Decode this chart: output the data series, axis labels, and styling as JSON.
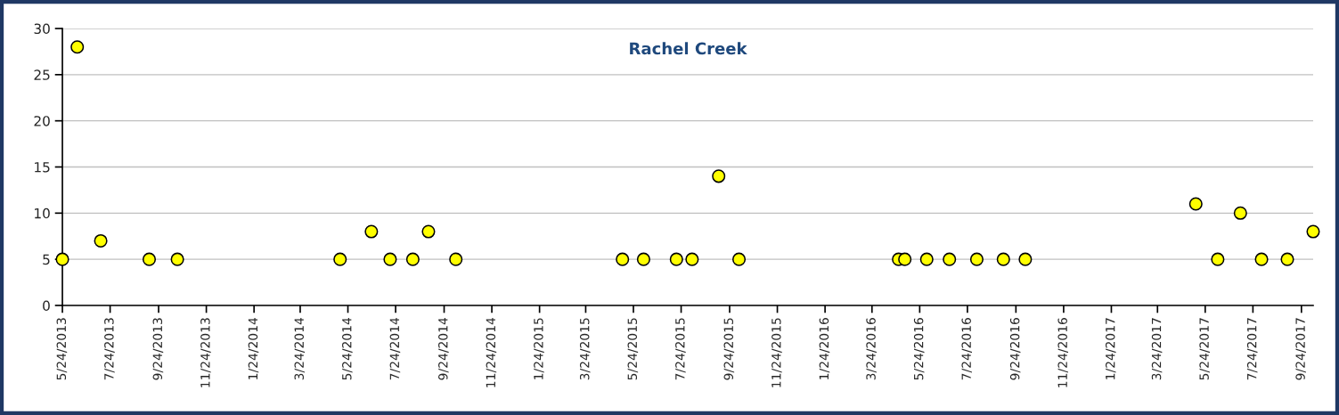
{
  "chart_data": {
    "type": "scatter",
    "title": "Rachel Creek",
    "x": [
      "2013-05-24",
      "2013-06-12",
      "2013-07-12",
      "2013-09-12",
      "2013-10-18",
      "2014-05-14",
      "2014-06-23",
      "2014-07-17",
      "2014-08-15",
      "2014-09-04",
      "2014-10-09",
      "2015-05-10",
      "2015-06-06",
      "2015-07-18",
      "2015-08-07",
      "2015-09-10",
      "2015-10-06",
      "2016-04-27",
      "2016-05-05",
      "2016-06-02",
      "2016-07-01",
      "2016-08-05",
      "2016-09-08",
      "2016-10-06",
      "2017-05-12",
      "2017-06-09",
      "2017-07-08",
      "2017-08-04",
      "2017-09-06",
      "2017-10-09"
    ],
    "series": [
      {
        "color": "#ffff00",
        "values": [
          5,
          28,
          7,
          5,
          5,
          5,
          8,
          5,
          5,
          8,
          5,
          5,
          5,
          5,
          5,
          14,
          5,
          5,
          5,
          5,
          5,
          5,
          5,
          5,
          11,
          5,
          10,
          5,
          5,
          8
        ]
      }
    ],
    "marker": "circle",
    "xlim": [
      "2013-05-24",
      "2017-10-09"
    ],
    "xticks": [
      {
        "value": "2013-05-24",
        "label": "5/24/2013"
      },
      {
        "value": "2013-07-24",
        "label": "7/24/2013"
      },
      {
        "value": "2013-09-24",
        "label": "9/24/2013"
      },
      {
        "value": "2013-11-24",
        "label": "11/24/2013"
      },
      {
        "value": "2014-01-24",
        "label": "1/24/2014"
      },
      {
        "value": "2014-03-24",
        "label": "3/24/2014"
      },
      {
        "value": "2014-05-24",
        "label": "5/24/2014"
      },
      {
        "value": "2014-07-24",
        "label": "7/24/2014"
      },
      {
        "value": "2014-09-24",
        "label": "9/24/2014"
      },
      {
        "value": "2014-11-24",
        "label": "11/24/2014"
      },
      {
        "value": "2015-01-24",
        "label": "1/24/2015"
      },
      {
        "value": "2015-03-24",
        "label": "3/24/2015"
      },
      {
        "value": "2015-05-24",
        "label": "5/24/2015"
      },
      {
        "value": "2015-07-24",
        "label": "7/24/2015"
      },
      {
        "value": "2015-09-24",
        "label": "9/24/2015"
      },
      {
        "value": "2015-11-24",
        "label": "11/24/2015"
      },
      {
        "value": "2016-01-24",
        "label": "1/24/2016"
      },
      {
        "value": "2016-03-24",
        "label": "3/24/2016"
      },
      {
        "value": "2016-05-24",
        "label": "5/24/2016"
      },
      {
        "value": "2016-07-24",
        "label": "7/24/2016"
      },
      {
        "value": "2016-09-24",
        "label": "9/24/2016"
      },
      {
        "value": "2016-11-24",
        "label": "11/24/2016"
      },
      {
        "value": "2017-01-24",
        "label": "1/24/2017"
      },
      {
        "value": "2017-03-24",
        "label": "3/24/2017"
      },
      {
        "value": "2017-05-24",
        "label": "5/24/2017"
      },
      {
        "value": "2017-07-24",
        "label": "7/24/2017"
      },
      {
        "value": "2017-09-24",
        "label": "9/24/2017"
      }
    ],
    "ylim": [
      0,
      30
    ],
    "yticks": [
      0,
      5,
      10,
      15,
      20,
      25,
      30
    ],
    "grid": "y"
  }
}
